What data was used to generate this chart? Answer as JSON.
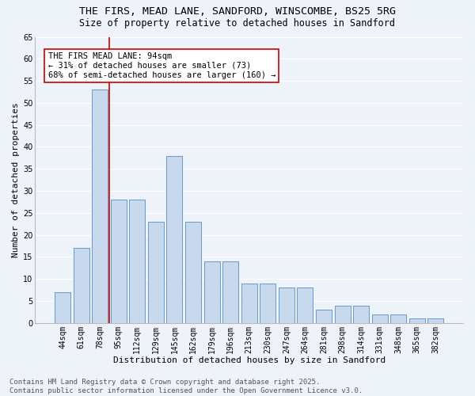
{
  "title": "THE FIRS, MEAD LANE, SANDFORD, WINSCOMBE, BS25 5RG",
  "subtitle": "Size of property relative to detached houses in Sandford",
  "xlabel": "Distribution of detached houses by size in Sandford",
  "ylabel": "Number of detached properties",
  "categories": [
    "44sqm",
    "61sqm",
    "78sqm",
    "95sqm",
    "112sqm",
    "129sqm",
    "145sqm",
    "162sqm",
    "179sqm",
    "196sqm",
    "213sqm",
    "230sqm",
    "247sqm",
    "264sqm",
    "281sqm",
    "298sqm",
    "314sqm",
    "331sqm",
    "348sqm",
    "365sqm",
    "382sqm"
  ],
  "values": [
    7,
    17,
    53,
    28,
    28,
    23,
    38,
    23,
    14,
    14,
    9,
    9,
    8,
    8,
    3,
    4,
    4,
    2,
    2,
    1,
    1
  ],
  "bar_color": "#c9d9ed",
  "bar_edge_color": "#6699cc",
  "bg_color": "#eef2f9",
  "grid_color": "#ffffff",
  "vline_color": "#cc0000",
  "annotation_text": "THE FIRS MEAD LANE: 94sqm\n← 31% of detached houses are smaller (73)\n68% of semi-detached houses are larger (160) →",
  "annotation_box_color": "#ffffff",
  "annotation_box_edge": "#cc0000",
  "ylim": [
    0,
    65
  ],
  "yticks": [
    0,
    5,
    10,
    15,
    20,
    25,
    30,
    35,
    40,
    45,
    50,
    55,
    60,
    65
  ],
  "footnote": "Contains HM Land Registry data © Crown copyright and database right 2025.\nContains public sector information licensed under the Open Government Licence v3.0.",
  "title_fontsize": 9.5,
  "subtitle_fontsize": 8.5,
  "xlabel_fontsize": 8,
  "ylabel_fontsize": 8,
  "tick_fontsize": 7,
  "annotation_fontsize": 7.5,
  "footnote_fontsize": 6.5
}
